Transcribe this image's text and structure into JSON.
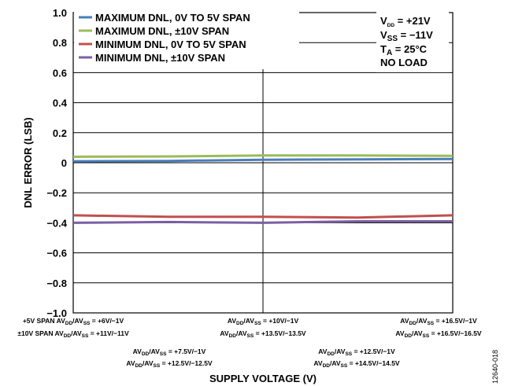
{
  "chart_data": {
    "type": "line",
    "ylabel": "DNL ERROR (LSB)",
    "xlabel": "SUPPLY VOLTAGE (V)",
    "ylim": [
      -1.0,
      1.0
    ],
    "yticks": [
      "1.0",
      "0.8",
      "0.6",
      "0.4",
      "0.2",
      "0",
      "−0.2",
      "−0.4",
      "−0.6",
      "−0.8",
      "−1.0"
    ],
    "x": [
      0,
      1,
      2,
      3,
      4
    ],
    "series": [
      {
        "name": "MAXIMUM DNL, 0V TO 5V SPAN",
        "color": "#4a7ebb",
        "values": [
          0.01,
          0.012,
          0.02,
          0.022,
          0.025
        ]
      },
      {
        "name": "MAXIMUM DNL, ±10V SPAN",
        "color": "#9bbb59",
        "values": [
          0.04,
          0.042,
          0.048,
          0.048,
          0.046
        ]
      },
      {
        "name": "MINIMUM DNL, 0V TO 5V SPAN",
        "color": "#c0504d",
        "values": [
          -0.35,
          -0.36,
          -0.36,
          -0.365,
          -0.35
        ]
      },
      {
        "name": "MINIMUM DNL, ±10V SPAN",
        "color": "#7b5fa3",
        "values": [
          -0.4,
          -0.395,
          -0.4,
          -0.39,
          -0.39
        ]
      }
    ],
    "conditions": {
      "vdd": {
        "main": "V",
        "sub": "DD",
        "value": " = +21V"
      },
      "vss": {
        "main": "V",
        "sub": "SS",
        "value": " = −11V"
      },
      "ta": {
        "main": "T",
        "sub": "A",
        "value": " = 25°C"
      },
      "load": "NO LOAD"
    },
    "x_tick_labels": {
      "prefix_5v": "+5V SPAN ",
      "prefix_10v": "±10V SPAN ",
      "av": "AV",
      "dd_sub": "DD",
      "ss_sub": "SS",
      "slash": "/",
      "top": [
        " = +6V/−1V",
        " = +10V/−1V",
        " = +16.5V/−1V"
      ],
      "top2": [
        " = +11V/−11V",
        " = +13.5V/−13.5V",
        " = +16.5V/−16.5V"
      ],
      "mid": [
        " = +7.5V/−1V",
        " = +12.5V/−1V"
      ],
      "mid2": [
        " = +12.5V/−12.5V",
        " = +14.5V/−14.5V"
      ]
    },
    "figure_id": "12640-018",
    "grid": true,
    "legend_position": "top-left"
  }
}
